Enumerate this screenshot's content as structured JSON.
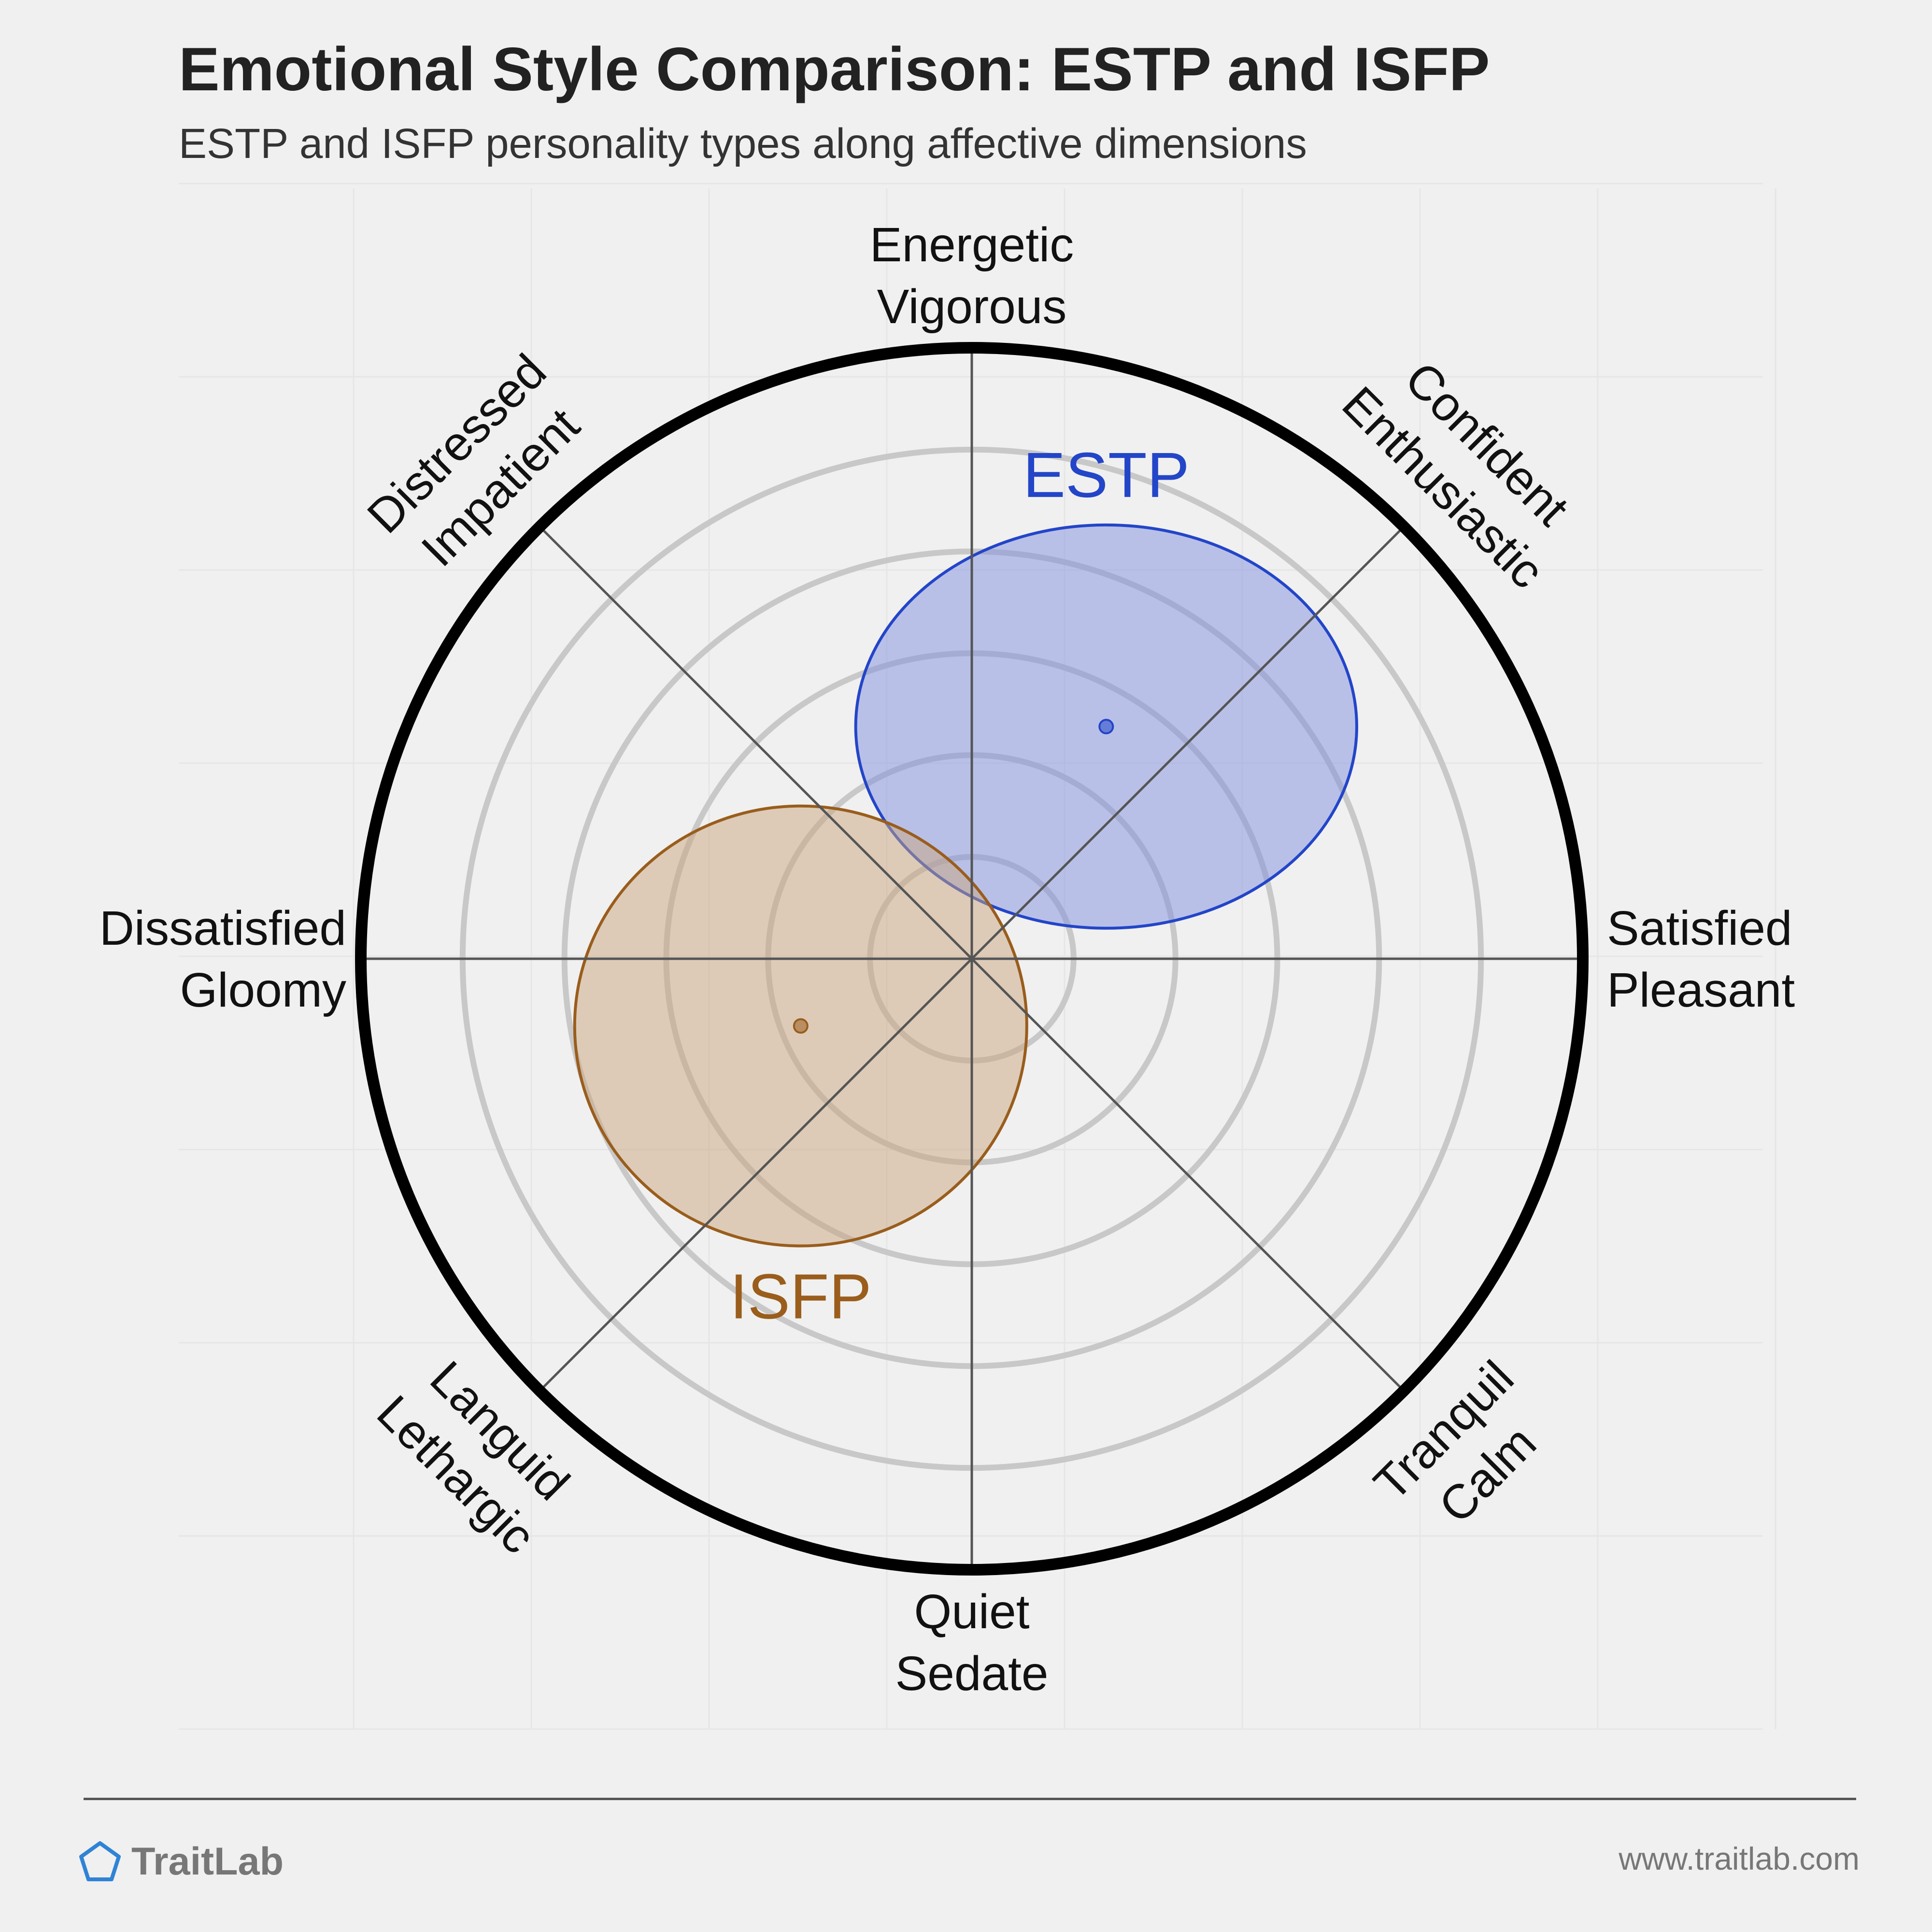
{
  "header": {
    "title": "Emotional Style Comparison: ESTP and ISFP",
    "subtitle": "ESTP and ISFP personality types along affective dimensions"
  },
  "footer": {
    "brand": "TraitLab",
    "website": "www.traitlab.com"
  },
  "colors": {
    "background": "#f0f0f0",
    "estp": "#2345c8",
    "isfp": "#9a5d1c"
  },
  "chart_data": {
    "type": "scatter",
    "title": "Emotional Style Comparison: ESTP and ISFP",
    "subtitle": "ESTP and ISFP personality types along affective dimensions",
    "axes": [
      {
        "angle": 90,
        "lines": [
          "Energetic",
          "Vigorous"
        ]
      },
      {
        "angle": 45,
        "lines": [
          "Confident",
          "Enthusiastic"
        ]
      },
      {
        "angle": 0,
        "lines": [
          "Satisfied",
          "Pleasant"
        ]
      },
      {
        "angle": -45,
        "lines": [
          "Tranquil",
          "Calm"
        ]
      },
      {
        "angle": -90,
        "lines": [
          "Quiet",
          "Sedate"
        ]
      },
      {
        "angle": -135,
        "lines": [
          "Languid",
          "Lethargic"
        ]
      },
      {
        "angle": 180,
        "lines": [
          "Dissatisfied",
          "Gloomy"
        ]
      },
      {
        "angle": 135,
        "lines": [
          "Distressed",
          "Impatient"
        ]
      }
    ],
    "xlim": [
      -1,
      1
    ],
    "ylim": [
      -1,
      1
    ],
    "rings": 6,
    "series": [
      {
        "name": "ESTP",
        "x": 0.22,
        "y": 0.38,
        "rx": 0.41,
        "ry": 0.33,
        "color": "#2345c8",
        "fill": "#7f8fe0"
      },
      {
        "name": "ISFP",
        "x": -0.28,
        "y": -0.11,
        "rx": 0.37,
        "ry": 0.36,
        "color": "#9a5d1c",
        "fill": "#c9a57f"
      }
    ]
  }
}
